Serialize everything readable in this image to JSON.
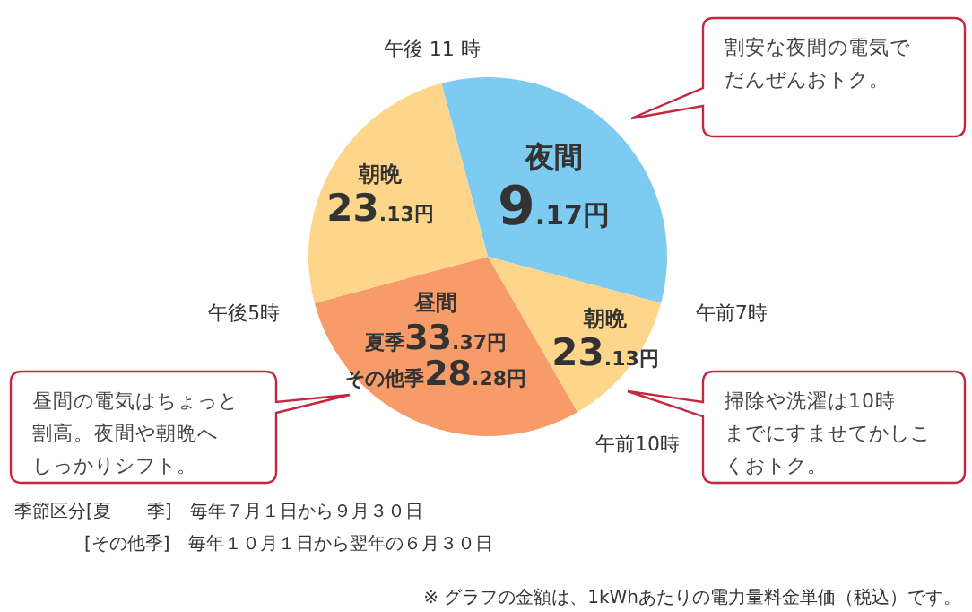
{
  "chart_data": {
    "type": "pie",
    "categories": [
      "夜間",
      "朝晩",
      "昼間",
      "朝晩"
    ],
    "values": [
      33.33,
      12.5,
      29.17,
      25
    ],
    "colors": [
      "#7ecbf2",
      "#fdd68c",
      "#f79b68",
      "#fdd68c"
    ],
    "annotations": [
      "9.17円",
      "23.13円",
      "夏季33.37円",
      "その他季28.28円",
      "23.13円",
      "午後 11 時",
      "午前7時",
      "午前10時",
      "午後5時",
      "割安な夜間の電気でだんぜんおトク。",
      "昼間の電気はちょっと割高。夜間や朝晩へしっかりシフト。",
      "掃除や洗濯は10時までにすませてかしこくおトク。",
      "季節区分[夏　　季]　毎年７月１日から９月３０日",
      "[その他季]　毎年１０月１日から翌年の６月３０日",
      "※ グラフの金額は、1kWhあたりの電力量料金単価（税込）です。"
    ]
  }
}
